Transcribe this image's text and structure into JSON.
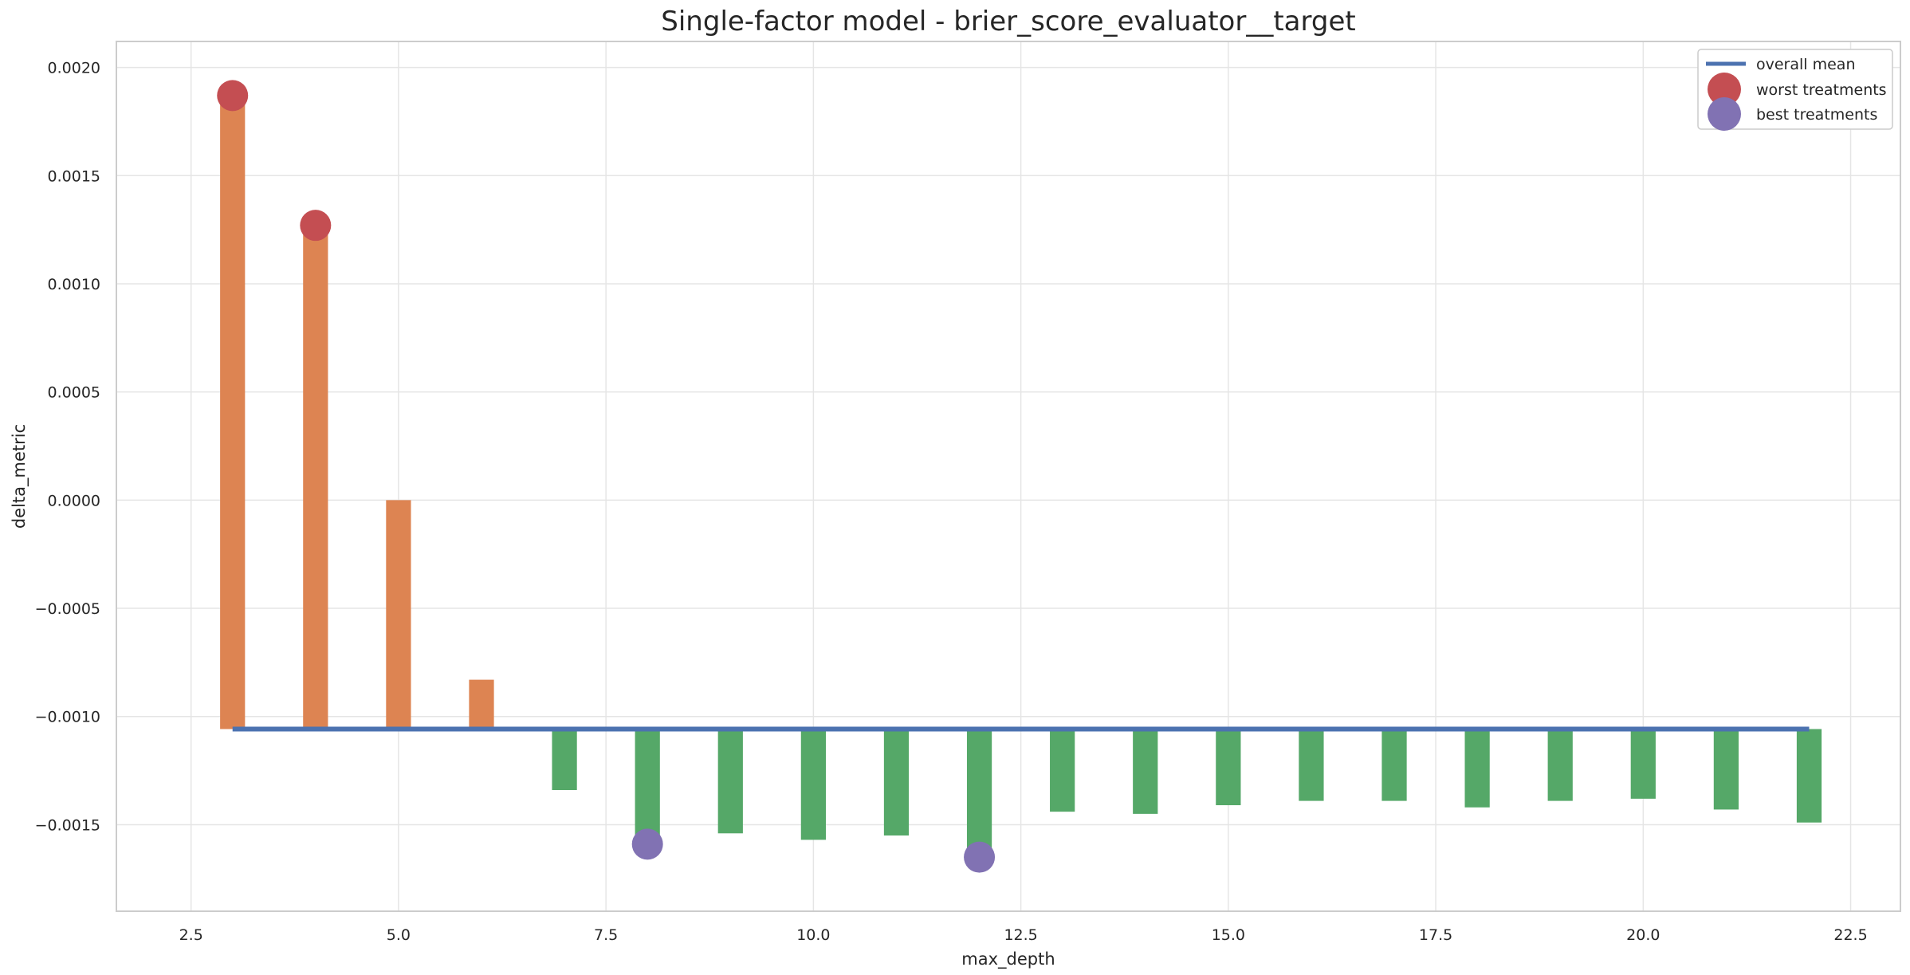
{
  "chart_data": {
    "type": "bar",
    "title": "Single-factor model - brier_score_evaluator__target",
    "xlabel": "max_depth",
    "ylabel": "delta_metric",
    "xlim": [
      1.6,
      23.1
    ],
    "ylim": [
      -0.0019,
      0.00212
    ],
    "xticks": [
      2.5,
      5.0,
      7.5,
      10.0,
      12.5,
      15.0,
      17.5,
      20.0,
      22.5
    ],
    "xtick_labels": [
      "2.5",
      "5.0",
      "7.5",
      "10.0",
      "12.5",
      "15.0",
      "17.5",
      "20.0",
      "22.5"
    ],
    "yticks": [
      0.002,
      0.0015,
      0.001,
      0.0005,
      0.0,
      -0.0005,
      -0.001,
      -0.0015
    ],
    "ytick_labels": [
      "0.0020",
      "0.0015",
      "0.0010",
      "0.0005",
      "0.0000",
      "−0.0005",
      "−0.0010",
      "−0.0015"
    ],
    "grid": true,
    "legend_position": "top-right",
    "overall_mean": -0.001058,
    "bar_base": -0.001058,
    "x": [
      3,
      4,
      5,
      6,
      7,
      8,
      9,
      10,
      11,
      12,
      13,
      14,
      15,
      16,
      17,
      18,
      19,
      20,
      21,
      22
    ],
    "values": [
      0.00187,
      0.00127,
      0.0,
      -0.00083,
      -0.00134,
      -0.00159,
      -0.00154,
      -0.00157,
      -0.00155,
      -0.00165,
      -0.00144,
      -0.00145,
      -0.00141,
      -0.00139,
      -0.00139,
      -0.00142,
      -0.00139,
      -0.00138,
      -0.00143,
      -0.00149
    ],
    "worst_treatments": [
      {
        "x": 3,
        "y": 0.00187
      },
      {
        "x": 4,
        "y": 0.00127
      }
    ],
    "best_treatments": [
      {
        "x": 8,
        "y": -0.00159
      },
      {
        "x": 12,
        "y": -0.00165
      }
    ],
    "legend": [
      "overall mean",
      "worst treatments",
      "best treatments"
    ],
    "colors": {
      "above_mean": "#dd8452",
      "below_mean": "#55a868",
      "mean_line": "#4c72b0",
      "worst": "#c44e52",
      "best": "#8172b3",
      "grid": "#e5e5e5",
      "frame": "#cccccc"
    }
  }
}
